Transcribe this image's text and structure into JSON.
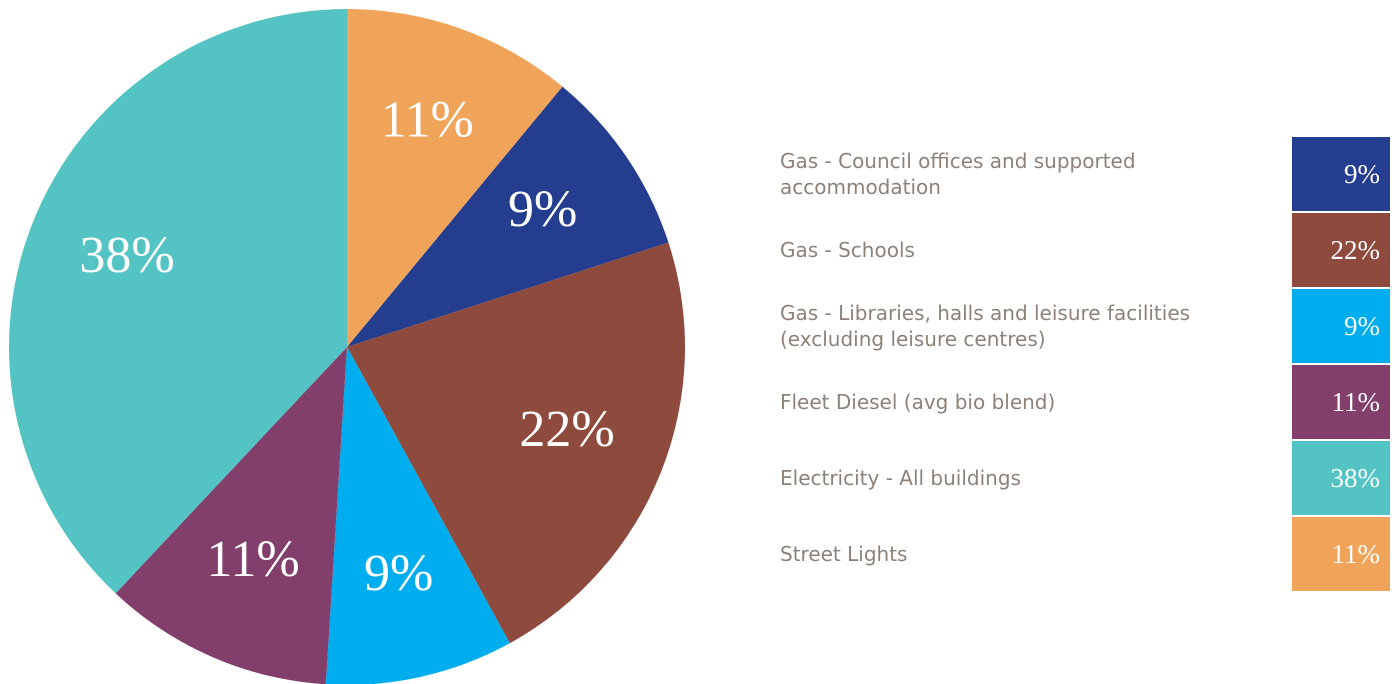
{
  "chart_data": {
    "type": "pie",
    "series": [
      {
        "name": "Gas - Council offices and supported accommodation",
        "color": "#253d8f",
        "values": [
          9
        ],
        "value_labels": [
          "9%"
        ]
      },
      {
        "name": "Gas - Schools",
        "color": "#8e4a3c",
        "values": [
          22
        ],
        "value_labels": [
          "22%"
        ]
      },
      {
        "name": "Gas - Libraries, halls and leisure facilities (excluding leisure centres)",
        "color": "#00aeef",
        "values": [
          9
        ],
        "value_labels": [
          "9%"
        ]
      },
      {
        "name": "Fleet Diesel (avg bio blend)",
        "color": "#823f6b",
        "values": [
          11
        ],
        "value_labels": [
          "11%"
        ]
      },
      {
        "name": "Electricity - All buildings",
        "color": "#53c3c4",
        "values": [
          38
        ],
        "value_labels": [
          "38%"
        ]
      },
      {
        "name": "Street Lights",
        "color": "#f0a45a",
        "values": [
          11
        ],
        "value_labels": [
          "11%"
        ]
      }
    ]
  }
}
